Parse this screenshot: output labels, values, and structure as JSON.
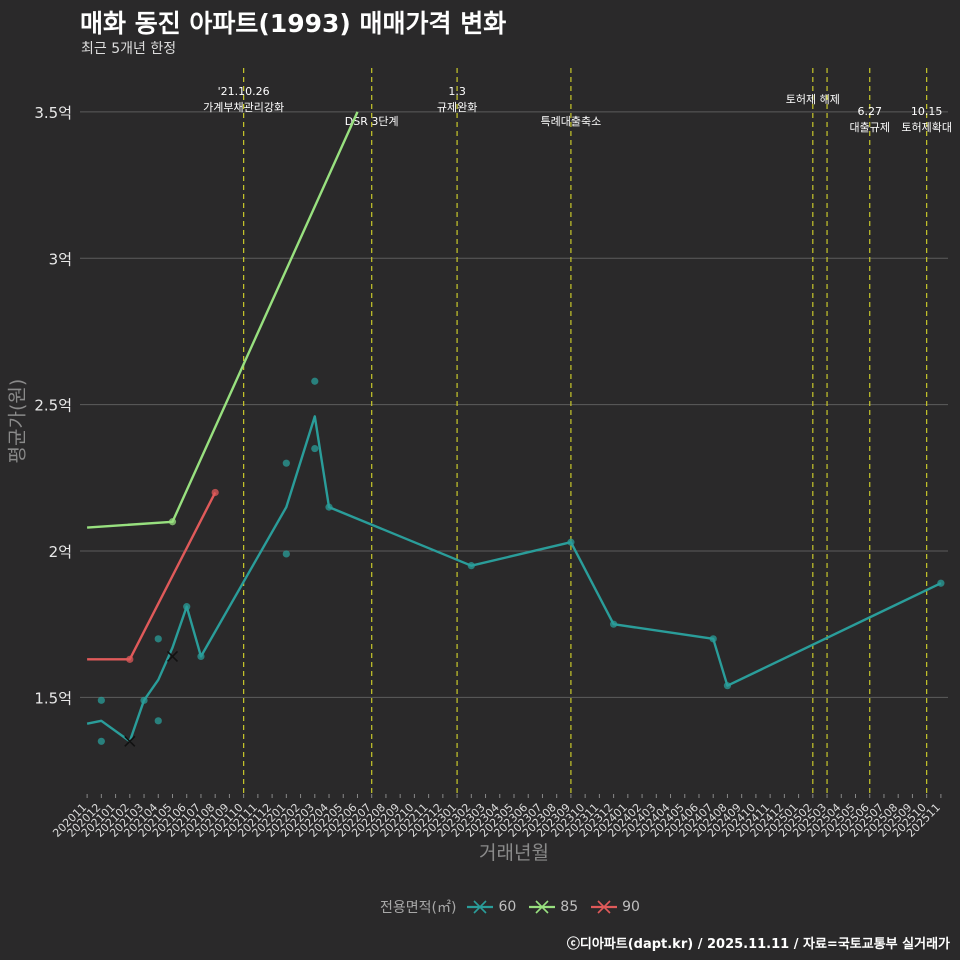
{
  "title": "매화 동진 아파트(1993) 매매가격 변화",
  "subtitle": "최근 5개년 한정",
  "caption": "ⓒ디아파트(dapt.kr) / 2025.11.11 / 자료=국토교통부 실거래가",
  "chart_data": {
    "type": "line",
    "title": "매화 동진 아파트(1993) 매매가격 변화",
    "subtitle": "최근 5개년 한정",
    "xlabel": "거래년월",
    "ylabel": "평균가(원)",
    "ylim": [
      1.17,
      3.65
    ],
    "yticks": [
      {
        "value": 1.5,
        "label": "1.5억"
      },
      {
        "value": 2.0,
        "label": "2억"
      },
      {
        "value": 2.5,
        "label": "2.5억"
      },
      {
        "value": 3.0,
        "label": "3억"
      },
      {
        "value": 3.5,
        "label": "3.5억"
      }
    ],
    "x_categories": [
      "202011",
      "202012",
      "202101",
      "202102",
      "202103",
      "202104",
      "202105",
      "202106",
      "202107",
      "202108",
      "202109",
      "202110",
      "202111",
      "202112",
      "202201",
      "202202",
      "202203",
      "202204",
      "202205",
      "202206",
      "202207",
      "202208",
      "202209",
      "202210",
      "202211",
      "202212",
      "202301",
      "202302",
      "202303",
      "202304",
      "202305",
      "202306",
      "202307",
      "202308",
      "202309",
      "202310",
      "202311",
      "202312",
      "202401",
      "202402",
      "202403",
      "202404",
      "202405",
      "202406",
      "202407",
      "202408",
      "202409",
      "202410",
      "202411",
      "202412",
      "202501",
      "202502",
      "202503",
      "202504",
      "202505",
      "202506",
      "202507",
      "202508",
      "202509",
      "202510",
      "202511"
    ],
    "legend_title": "전용면적(㎡)",
    "series": [
      {
        "name": "60",
        "color": "#2a9d9a",
        "line": [
          {
            "x": "202011",
            "y": 1.41
          },
          {
            "x": "202012",
            "y": 1.42
          },
          {
            "x": "202102",
            "y": 1.35
          },
          {
            "x": "202103",
            "y": 1.49
          },
          {
            "x": "202104",
            "y": 1.56
          },
          {
            "x": "202105",
            "y": 1.67
          },
          {
            "x": "202106",
            "y": 1.81
          },
          {
            "x": "202107",
            "y": 1.64
          },
          {
            "x": "202201",
            "y": 2.15
          },
          {
            "x": "202203",
            "y": 2.46
          },
          {
            "x": "202204",
            "y": 2.15
          },
          {
            "x": "202302",
            "y": 1.95
          },
          {
            "x": "202309",
            "y": 2.03
          },
          {
            "x": "202312",
            "y": 1.75
          },
          {
            "x": "202407",
            "y": 1.7
          },
          {
            "x": "202408",
            "y": 1.54
          },
          {
            "x": "202511",
            "y": 1.89
          }
        ],
        "points": [
          {
            "x": "202012",
            "y": 1.49
          },
          {
            "x": "202012",
            "y": 1.35
          },
          {
            "x": "202103",
            "y": 1.49
          },
          {
            "x": "202104",
            "y": 1.7
          },
          {
            "x": "202104",
            "y": 1.42
          },
          {
            "x": "202106",
            "y": 1.81
          },
          {
            "x": "202107",
            "y": 1.64
          },
          {
            "x": "202201",
            "y": 2.3
          },
          {
            "x": "202201",
            "y": 1.99
          },
          {
            "x": "202203",
            "y": 2.58
          },
          {
            "x": "202203",
            "y": 2.35
          },
          {
            "x": "202204",
            "y": 2.15
          },
          {
            "x": "202302",
            "y": 1.95
          },
          {
            "x": "202309",
            "y": 2.03
          },
          {
            "x": "202312",
            "y": 1.75
          },
          {
            "x": "202407",
            "y": 1.7
          },
          {
            "x": "202408",
            "y": 1.54
          },
          {
            "x": "202511",
            "y": 1.89
          }
        ],
        "cancelled": [
          {
            "x": "202102",
            "y": 1.35
          },
          {
            "x": "202105",
            "y": 1.64
          }
        ]
      },
      {
        "name": "85",
        "color": "#98e07f",
        "line": [
          {
            "x": "202011",
            "y": 2.08
          },
          {
            "x": "202105",
            "y": 2.1
          },
          {
            "x": "202206",
            "y": 3.5
          }
        ],
        "points": [
          {
            "x": "202105",
            "y": 2.1
          }
        ],
        "cancelled": []
      },
      {
        "name": "90",
        "color": "#e05a5a",
        "line": [
          {
            "x": "202011",
            "y": 1.63
          },
          {
            "x": "202102",
            "y": 1.63
          },
          {
            "x": "202108",
            "y": 2.2
          }
        ],
        "points": [
          {
            "x": "202102",
            "y": 1.63
          },
          {
            "x": "202108",
            "y": 2.2
          }
        ],
        "cancelled": []
      }
    ],
    "events": [
      {
        "x": "202110",
        "lines": [
          "'21.10.26",
          "가계부채관리강화"
        ],
        "row": 0
      },
      {
        "x": "202207",
        "lines": [
          "DSR 3단계"
        ],
        "row": 2
      },
      {
        "x": "202301",
        "lines": [
          "1.3",
          "규제완화"
        ],
        "row": 0
      },
      {
        "x": "202309",
        "lines": [
          "특례대출축소"
        ],
        "row": 2
      },
      {
        "x": "202502",
        "lines": [
          "토허제 해제"
        ],
        "row": 1
      },
      {
        "x": "202503",
        "lines": [],
        "row": 1
      },
      {
        "x": "202506",
        "lines": [
          "6.27",
          "대출규제"
        ],
        "row": 1
      },
      {
        "x": "202510",
        "lines": [
          "10.15",
          "토허제확대"
        ],
        "row": 1
      }
    ]
  }
}
